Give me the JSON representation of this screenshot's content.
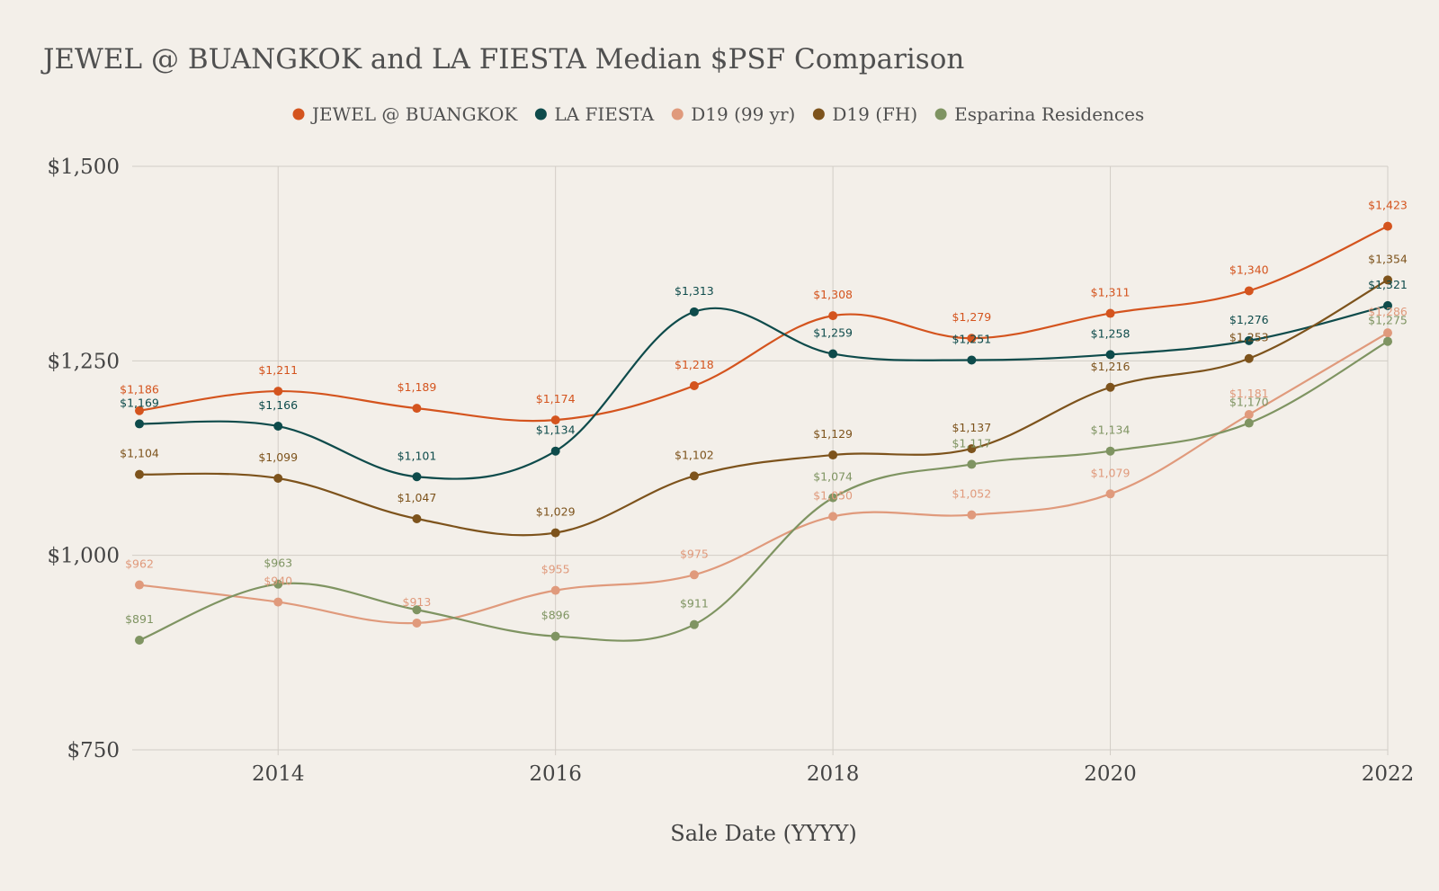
{
  "chart_data": {
    "type": "line",
    "title": "JEWEL @ BUANGKOK and LA FIESTA Median $PSF Comparison",
    "xlabel": "Sale Date (YYYY)",
    "ylabel": "",
    "x": [
      2013,
      2014,
      2015,
      2016,
      2017,
      2018,
      2019,
      2020,
      2021,
      2022
    ],
    "xlim": [
      2013,
      2022
    ],
    "xticks": [
      2014,
      2016,
      2018,
      2020,
      2022
    ],
    "xtick_labels": [
      "2014",
      "2016",
      "2018",
      "2020",
      "2022"
    ],
    "ylim": [
      750,
      1500
    ],
    "yticks": [
      750,
      1000,
      1250,
      1500
    ],
    "ytick_labels": [
      "$750",
      "$1,000",
      "$1,250",
      "$1,500"
    ],
    "grid": true,
    "legend_position": "top-center",
    "series": [
      {
        "name": "JEWEL @ BUANGKOK",
        "color": "#d4541e",
        "values": [
          1186,
          1211,
          1189,
          1174,
          1218,
          1308,
          1279,
          1311,
          1340,
          1423
        ],
        "labels": [
          "$1,186",
          "$1,211",
          "$1,189",
          "$1,174",
          "$1,218",
          "$1,308",
          "$1,279",
          "$1,311",
          "$1,340",
          "$1,423"
        ]
      },
      {
        "name": "LA FIESTA",
        "color": "#0e4b4b",
        "values": [
          1169,
          1166,
          1101,
          1134,
          1313,
          1259,
          1251,
          1258,
          1276,
          1321
        ],
        "labels": [
          "$1,169",
          "$1,166",
          "$1,101",
          "$1,134",
          "$1,313",
          "$1,259",
          "$1,251",
          "$1,258",
          "$1,276",
          "$1,321"
        ]
      },
      {
        "name": "D19 (99 yr)",
        "color": "#e09a7c",
        "values": [
          962,
          940,
          913,
          955,
          975,
          1050,
          1052,
          1079,
          1181,
          1286
        ],
        "labels": [
          "$962",
          "$940",
          "$913",
          "$955",
          "$975",
          "$1,050",
          "$1,052",
          "$1,079",
          "$1,181",
          "$1,286"
        ]
      },
      {
        "name": "D19 (FH)",
        "color": "#7d531c",
        "values": [
          1104,
          1099,
          1047,
          1029,
          1102,
          1129,
          1137,
          1216,
          1253,
          1354
        ],
        "labels": [
          "$1,104",
          "$1,099",
          "$1,047",
          "$1,029",
          "$1,102",
          "$1,129",
          "$1,137",
          "$1,216",
          "$1,253",
          "$1,354"
        ]
      },
      {
        "name": "Esparina Residences",
        "color": "#7f9462",
        "values": [
          891,
          963,
          930,
          896,
          911,
          1074,
          1117,
          1134,
          1170,
          1275
        ],
        "labels": [
          "$891",
          "$963",
          "",
          "$896",
          "$911",
          "$1,074",
          "$1,117",
          "$1,134",
          "$1,170",
          "$1,275"
        ]
      }
    ]
  }
}
